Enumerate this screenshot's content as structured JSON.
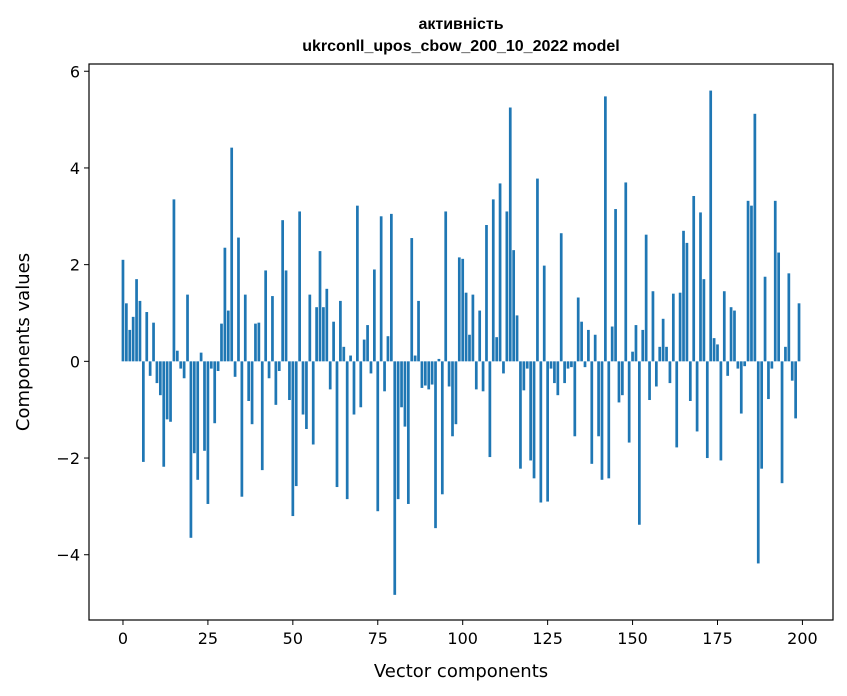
{
  "chart_data": {
    "type": "bar",
    "title": "активність",
    "subtitle": "ukrconll_upos_cbow_200_10_2022 model",
    "xlabel": "Vector components",
    "ylabel": "Components values",
    "xlim": [
      -10,
      209
    ],
    "ylim": [
      -5.35,
      6.15
    ],
    "xticks": [
      0,
      25,
      50,
      75,
      100,
      125,
      150,
      175,
      200
    ],
    "xtick_labels": [
      "0",
      "25",
      "50",
      "75",
      "100",
      "125",
      "150",
      "175",
      "200"
    ],
    "yticks": [
      -4,
      -2,
      0,
      2,
      4,
      6
    ],
    "ytick_labels": [
      "−4",
      "−2",
      "0",
      "2",
      "4",
      "6"
    ],
    "grid": false,
    "legend": "none",
    "bar_color": "#1f77b4",
    "x": [
      0,
      1,
      2,
      3,
      4,
      5,
      6,
      7,
      8,
      9,
      10,
      11,
      12,
      13,
      14,
      15,
      16,
      17,
      18,
      19,
      20,
      21,
      22,
      23,
      24,
      25,
      26,
      27,
      28,
      29,
      30,
      31,
      32,
      33,
      34,
      35,
      36,
      37,
      38,
      39,
      40,
      41,
      42,
      43,
      44,
      45,
      46,
      47,
      48,
      49,
      50,
      51,
      52,
      53,
      54,
      55,
      56,
      57,
      58,
      59,
      60,
      61,
      62,
      63,
      64,
      65,
      66,
      67,
      68,
      69,
      70,
      71,
      72,
      73,
      74,
      75,
      76,
      77,
      78,
      79,
      80,
      81,
      82,
      83,
      84,
      85,
      86,
      87,
      88,
      89,
      90,
      91,
      92,
      93,
      94,
      95,
      96,
      97,
      98,
      99,
      100,
      101,
      102,
      103,
      104,
      105,
      106,
      107,
      108,
      109,
      110,
      111,
      112,
      113,
      114,
      115,
      116,
      117,
      118,
      119,
      120,
      121,
      122,
      123,
      124,
      125,
      126,
      127,
      128,
      129,
      130,
      131,
      132,
      133,
      134,
      135,
      136,
      137,
      138,
      139,
      140,
      141,
      142,
      143,
      144,
      145,
      146,
      147,
      148,
      149,
      150,
      151,
      152,
      153,
      154,
      155,
      156,
      157,
      158,
      159,
      160,
      161,
      162,
      163,
      164,
      165,
      166,
      167,
      168,
      169,
      170,
      171,
      172,
      173,
      174,
      175,
      176,
      177,
      178,
      179,
      180,
      181,
      182,
      183,
      184,
      185,
      186,
      187,
      188,
      189,
      190,
      191,
      192,
      193,
      194,
      195,
      196,
      197,
      198,
      199
    ],
    "values": [
      2.1,
      1.2,
      0.65,
      0.92,
      1.7,
      1.25,
      -2.08,
      1.02,
      -0.3,
      0.8,
      -0.45,
      -0.7,
      -2.18,
      -1.2,
      -1.25,
      3.35,
      0.22,
      -0.15,
      -0.35,
      1.38,
      -3.65,
      -1.9,
      -2.45,
      0.18,
      -1.85,
      -2.95,
      -0.15,
      -1.28,
      -0.2,
      0.78,
      2.35,
      1.05,
      4.42,
      -0.32,
      2.56,
      -2.8,
      1.38,
      -0.82,
      -1.3,
      0.78,
      0.8,
      -2.25,
      1.88,
      -0.35,
      1.35,
      -0.9,
      -0.2,
      2.92,
      1.88,
      -0.8,
      -3.2,
      -2.58,
      3.1,
      -1.1,
      -1.4,
      1.38,
      -1.72,
      1.12,
      2.28,
      1.12,
      1.5,
      -0.58,
      0.82,
      -2.6,
      1.25,
      0.3,
      -2.85,
      0.12,
      -1.1,
      3.22,
      -0.95,
      0.45,
      0.75,
      -0.25,
      1.9,
      -3.1,
      3.0,
      -0.62,
      0.52,
      3.05,
      -4.83,
      -2.85,
      -0.95,
      -1.35,
      -2.95,
      2.55,
      0.12,
      1.25,
      -0.55,
      -0.5,
      -0.58,
      -0.48,
      -3.45,
      0.05,
      -2.75,
      3.1,
      -0.52,
      -1.55,
      -1.3,
      2.15,
      2.12,
      1.42,
      0.55,
      1.38,
      -0.58,
      1.05,
      -0.62,
      2.82,
      -1.98,
      3.35,
      0.5,
      3.68,
      -0.25,
      3.1,
      5.25,
      2.3,
      0.95,
      -2.22,
      -0.6,
      -0.15,
      -2.05,
      -2.42,
      3.78,
      -2.92,
      1.98,
      -2.9,
      -0.15,
      -0.45,
      -0.7,
      2.65,
      -0.45,
      -0.15,
      -0.12,
      -1.55,
      1.32,
      0.82,
      -0.12,
      0.65,
      -2.12,
      0.55,
      -1.55,
      -2.45,
      5.48,
      -2.42,
      0.72,
      3.15,
      -0.85,
      -0.7,
      3.7,
      -1.68,
      0.2,
      0.75,
      -3.38,
      0.65,
      2.62,
      -0.8,
      1.45,
      -0.52,
      0.3,
      0.88,
      0.3,
      -0.45,
      1.4,
      -1.78,
      1.42,
      2.7,
      2.45,
      -0.82,
      3.42,
      -1.45,
      3.08,
      1.7,
      -2.0,
      5.6,
      0.48,
      0.35,
      -2.05,
      1.45,
      -0.3,
      1.12,
      1.05,
      -0.15,
      -1.08,
      -0.1,
      3.32,
      3.22,
      5.12,
      -4.18,
      -2.22,
      1.75,
      -0.78,
      -0.15,
      3.32,
      2.25,
      -2.52,
      0.3,
      1.82,
      -0.4,
      -1.18,
      1.2
    ]
  }
}
